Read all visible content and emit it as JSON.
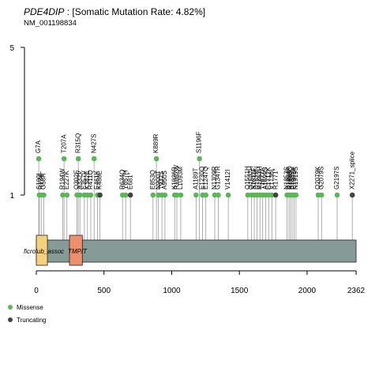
{
  "chart_data": {
    "type": "lollipop",
    "title": {
      "gene": "PDE4DIP",
      "rest": " : [Somatic Mutation Rate: 4.82%]"
    },
    "subtitle": "NM_001198834",
    "y_ticks": [
      "5",
      "1"
    ],
    "x_ticks": [
      0,
      500,
      1000,
      1500,
      2000,
      2362
    ],
    "x_range": [
      0,
      2362
    ],
    "protein_length": 2362,
    "domains": [
      {
        "label": "ficrolub_assoc",
        "start": 0,
        "end": 82,
        "color": "#F5D17E"
      },
      {
        "label": "TMP/T",
        "start": 245,
        "end": 340,
        "color": "#EE8F6E"
      }
    ],
    "mutations": [
      {
        "pos": 18,
        "label": "G7A",
        "type": "Missense",
        "count": 2
      },
      {
        "pos": 22,
        "label": "S100L",
        "type": "Missense",
        "count": 1
      },
      {
        "pos": 36,
        "label": "R134",
        "type": "Missense",
        "count": 1
      },
      {
        "pos": 55,
        "label": "G58R",
        "type": "Missense",
        "count": 1
      },
      {
        "pos": 195,
        "label": "R194W",
        "type": "Missense",
        "count": 1
      },
      {
        "pos": 205,
        "label": "T207A",
        "type": "Missense",
        "count": 2
      },
      {
        "pos": 226,
        "label": "E227K",
        "type": "Missense",
        "count": 1
      },
      {
        "pos": 300,
        "label": "Q302E",
        "type": "Missense",
        "count": 1
      },
      {
        "pos": 310,
        "label": "R315Q",
        "type": "Missense",
        "count": 2
      },
      {
        "pos": 322,
        "label": "A332V",
        "type": "Missense",
        "count": 1
      },
      {
        "pos": 355,
        "label": "E357V",
        "type": "Missense",
        "count": 1
      },
      {
        "pos": 378,
        "label": "K382E",
        "type": "Missense",
        "count": 1
      },
      {
        "pos": 402,
        "label": "R411Q",
        "type": "Missense",
        "count": 1
      },
      {
        "pos": 427,
        "label": "N427S",
        "type": "Missense",
        "count": 2
      },
      {
        "pos": 452,
        "label": "E461K",
        "type": "Missense",
        "count": 1
      },
      {
        "pos": 470,
        "label": "K480E",
        "type": "Truncating",
        "count": 1
      },
      {
        "pos": 637,
        "label": "R634Q",
        "type": "Missense",
        "count": 1
      },
      {
        "pos": 660,
        "label": "Y657H",
        "type": "Missense",
        "count": 1
      },
      {
        "pos": 695,
        "label": "E681*",
        "type": "Truncating",
        "count": 1
      },
      {
        "pos": 862,
        "label": "E853Q",
        "type": "Missense",
        "count": 1
      },
      {
        "pos": 887,
        "label": "K889R",
        "type": "Missense",
        "count": 2
      },
      {
        "pos": 902,
        "label": "N900T",
        "type": "Missense",
        "count": 1
      },
      {
        "pos": 928,
        "label": "T932S",
        "type": "Missense",
        "count": 1
      },
      {
        "pos": 950,
        "label": "A950S",
        "type": "Missense",
        "count": 1
      },
      {
        "pos": 1022,
        "label": "K1026R",
        "type": "Missense",
        "count": 1
      },
      {
        "pos": 1038,
        "label": "R1037W",
        "type": "Missense",
        "count": 1
      },
      {
        "pos": 1067,
        "label": "L1093M",
        "type": "Missense",
        "count": 1
      },
      {
        "pos": 1180,
        "label": "A1189T",
        "type": "Missense",
        "count": 1
      },
      {
        "pos": 1205,
        "label": "S1196F",
        "type": "Missense",
        "count": 2
      },
      {
        "pos": 1228,
        "label": "E1230Q",
        "type": "Missense",
        "count": 1
      },
      {
        "pos": 1252,
        "label": "E1247Q",
        "type": "Missense",
        "count": 1
      },
      {
        "pos": 1318,
        "label": "N1309R",
        "type": "Missense",
        "count": 1
      },
      {
        "pos": 1344,
        "label": "G1347R",
        "type": "Missense",
        "count": 1
      },
      {
        "pos": 1418,
        "label": "V1412I",
        "type": "Missense",
        "count": 1
      },
      {
        "pos": 1562,
        "label": "Q1551H",
        "type": "Missense",
        "count": 1
      },
      {
        "pos": 1590,
        "label": "Q1597H",
        "type": "Missense",
        "count": 1
      },
      {
        "pos": 1610,
        "label": "S1611F",
        "type": "Missense",
        "count": 1
      },
      {
        "pos": 1630,
        "label": "D1628N",
        "type": "Missense",
        "count": 1
      },
      {
        "pos": 1652,
        "label": "R1653H",
        "type": "Missense",
        "count": 1
      },
      {
        "pos": 1672,
        "label": "T1677A",
        "type": "Missense",
        "count": 1
      },
      {
        "pos": 1694,
        "label": "A1699S",
        "type": "Missense",
        "count": 1
      },
      {
        "pos": 1716,
        "label": "E1712K",
        "type": "Missense",
        "count": 1
      },
      {
        "pos": 1740,
        "label": "V1736I",
        "type": "Missense",
        "count": 1
      },
      {
        "pos": 1768,
        "label": "R1771*",
        "type": "Truncating",
        "count": 1
      },
      {
        "pos": 1852,
        "label": "N1853S",
        "type": "Missense",
        "count": 1
      },
      {
        "pos": 1866,
        "label": "E1864K",
        "type": "Missense",
        "count": 1
      },
      {
        "pos": 1878,
        "label": "R1880Q",
        "type": "Missense",
        "count": 1
      },
      {
        "pos": 1890,
        "label": "S1889L",
        "type": "Missense",
        "count": 1
      },
      {
        "pos": 1904,
        "label": "E1901K",
        "type": "Missense",
        "count": 1
      },
      {
        "pos": 1918,
        "label": "N1919S",
        "type": "Missense",
        "count": 1
      },
      {
        "pos": 2082,
        "label": "Q2079K",
        "type": "Missense",
        "count": 1
      },
      {
        "pos": 2107,
        "label": "G2079S",
        "type": "Missense",
        "count": 1
      },
      {
        "pos": 2222,
        "label": "G2197S",
        "type": "Missense",
        "count": 1
      },
      {
        "pos": 2334,
        "label": "X2271_splice",
        "type": "Truncating",
        "count": 1
      }
    ],
    "legend": [
      {
        "label": "Missense",
        "color": "#5DB55A"
      },
      {
        "label": "Truncating",
        "color": "#444444"
      }
    ]
  }
}
